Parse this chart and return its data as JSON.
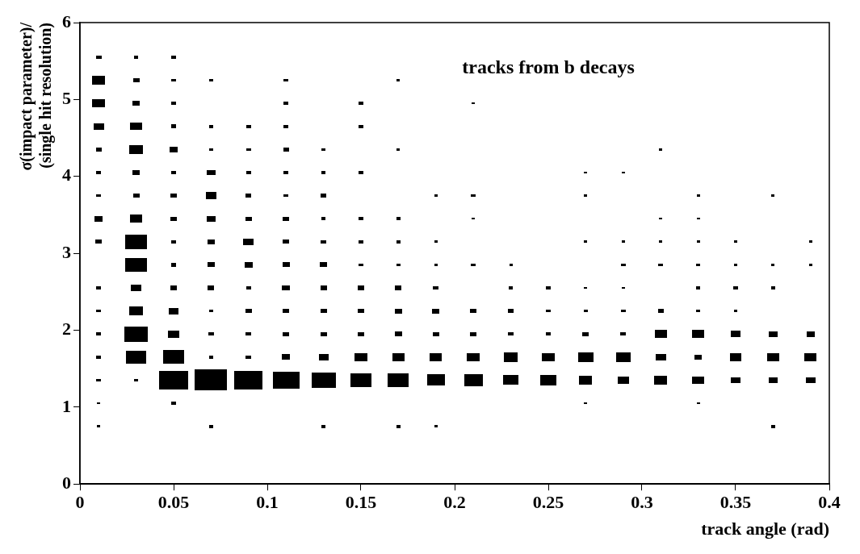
{
  "chart_data": {
    "type": "bubble",
    "marker": "square",
    "color": "#000000",
    "annotations": [
      "tracks from b decays"
    ],
    "xlabel": "track angle (rad)",
    "ylabel": "σ(impact parameter)/\n(single hit resolution)",
    "xlim": [
      0,
      0.4
    ],
    "xticks": [
      0,
      0.05,
      0.1,
      0.15,
      0.2,
      0.25,
      0.3,
      0.35,
      0.4
    ],
    "ylim": [
      0,
      6
    ],
    "yticks": [
      0,
      1,
      2,
      3,
      4,
      5,
      6
    ],
    "x": [
      0.01,
      0.01,
      0.01,
      0.01,
      0.01,
      0.01,
      0.01,
      0.01,
      0.01,
      0.01,
      0.01,
      0.01,
      0.01,
      0.01,
      0.01,
      0.01,
      0.03,
      0.03,
      0.03,
      0.03,
      0.03,
      0.03,
      0.03,
      0.03,
      0.03,
      0.03,
      0.03,
      0.03,
      0.03,
      0.03,
      0.03,
      0.05,
      0.05,
      0.05,
      0.05,
      0.05,
      0.05,
      0.05,
      0.05,
      0.05,
      0.05,
      0.05,
      0.05,
      0.05,
      0.05,
      0.05,
      0.05,
      0.07,
      0.07,
      0.07,
      0.07,
      0.07,
      0.07,
      0.07,
      0.07,
      0.07,
      0.07,
      0.07,
      0.07,
      0.07,
      0.07,
      0.09,
      0.09,
      0.09,
      0.09,
      0.09,
      0.09,
      0.09,
      0.09,
      0.09,
      0.09,
      0.09,
      0.09,
      0.11,
      0.11,
      0.11,
      0.11,
      0.11,
      0.11,
      0.11,
      0.11,
      0.11,
      0.11,
      0.11,
      0.11,
      0.11,
      0.11,
      0.13,
      0.13,
      0.13,
      0.13,
      0.13,
      0.13,
      0.13,
      0.13,
      0.13,
      0.13,
      0.13,
      0.13,
      0.15,
      0.15,
      0.15,
      0.15,
      0.15,
      0.15,
      0.15,
      0.15,
      0.15,
      0.15,
      0.15,
      0.17,
      0.17,
      0.17,
      0.17,
      0.17,
      0.17,
      0.17,
      0.17,
      0.17,
      0.17,
      0.17,
      0.19,
      0.19,
      0.19,
      0.19,
      0.19,
      0.19,
      0.19,
      0.19,
      0.19,
      0.21,
      0.21,
      0.21,
      0.21,
      0.21,
      0.21,
      0.21,
      0.21,
      0.23,
      0.23,
      0.23,
      0.23,
      0.23,
      0.23,
      0.25,
      0.25,
      0.25,
      0.25,
      0.25,
      0.27,
      0.27,
      0.27,
      0.27,
      0.27,
      0.27,
      0.27,
      0.27,
      0.27,
      0.29,
      0.29,
      0.29,
      0.29,
      0.29,
      0.29,
      0.29,
      0.29,
      0.31,
      0.31,
      0.31,
      0.31,
      0.31,
      0.31,
      0.31,
      0.31,
      0.33,
      0.33,
      0.33,
      0.33,
      0.33,
      0.33,
      0.33,
      0.33,
      0.33,
      0.33,
      0.35,
      0.35,
      0.35,
      0.35,
      0.35,
      0.35,
      0.35,
      0.37,
      0.37,
      0.37,
      0.37,
      0.37,
      0.37,
      0.37,
      0.39,
      0.39,
      0.39,
      0.39,
      0.39
    ],
    "values": [
      5.55,
      5.25,
      4.95,
      4.65,
      4.35,
      4.05,
      3.75,
      3.45,
      3.15,
      2.55,
      2.25,
      1.95,
      1.65,
      1.35,
      1.05,
      0.75,
      5.55,
      5.25,
      4.95,
      4.65,
      4.35,
      4.05,
      3.75,
      3.45,
      3.15,
      2.85,
      2.55,
      2.25,
      1.95,
      1.65,
      1.35,
      5.55,
      5.25,
      4.95,
      4.65,
      4.35,
      4.05,
      3.75,
      3.45,
      3.15,
      2.85,
      2.55,
      2.25,
      1.95,
      1.65,
      1.35,
      1.05,
      5.25,
      4.65,
      4.35,
      4.05,
      3.75,
      3.45,
      3.15,
      2.85,
      2.55,
      2.25,
      1.95,
      1.65,
      1.35,
      0.75,
      4.65,
      4.35,
      4.05,
      3.75,
      3.45,
      3.15,
      2.85,
      2.55,
      2.25,
      1.95,
      1.65,
      1.35,
      5.25,
      4.95,
      4.65,
      4.35,
      4.05,
      3.75,
      3.45,
      3.15,
      2.85,
      2.55,
      2.25,
      1.95,
      1.65,
      1.35,
      4.35,
      4.05,
      3.75,
      3.45,
      3.15,
      2.85,
      2.55,
      2.25,
      1.95,
      1.65,
      1.35,
      0.75,
      4.95,
      4.65,
      4.05,
      3.45,
      3.15,
      2.85,
      2.55,
      2.25,
      1.95,
      1.65,
      1.35,
      5.25,
      4.35,
      3.45,
      3.15,
      2.85,
      2.55,
      2.25,
      1.95,
      1.65,
      1.35,
      0.75,
      3.75,
      3.15,
      2.85,
      2.55,
      2.25,
      1.95,
      1.65,
      1.35,
      0.75,
      4.95,
      3.75,
      3.45,
      2.85,
      2.25,
      1.95,
      1.65,
      1.35,
      2.85,
      2.55,
      2.25,
      1.95,
      1.65,
      1.35,
      2.55,
      2.25,
      1.95,
      1.65,
      1.35,
      4.05,
      3.75,
      3.15,
      2.55,
      2.25,
      1.95,
      1.65,
      1.35,
      1.05,
      4.05,
      3.15,
      2.85,
      2.55,
      2.25,
      1.95,
      1.65,
      1.35,
      4.35,
      3.45,
      3.15,
      2.85,
      2.25,
      1.95,
      1.65,
      1.35,
      3.75,
      3.45,
      3.15,
      2.85,
      2.55,
      2.25,
      1.95,
      1.65,
      1.35,
      1.05,
      3.15,
      2.85,
      2.55,
      2.25,
      1.95,
      1.65,
      1.35,
      3.75,
      2.85,
      2.55,
      1.95,
      1.65,
      1.35,
      0.75,
      3.15,
      2.85,
      1.95,
      1.65,
      1.35
    ],
    "sizes": [
      0.03,
      0.16,
      0.17,
      0.1,
      0.03,
      0.02,
      0.02,
      0.07,
      0.04,
      0.02,
      0.02,
      0.02,
      0.02,
      0.02,
      0.01,
      0.01,
      0.02,
      0.04,
      0.06,
      0.13,
      0.17,
      0.06,
      0.04,
      0.13,
      0.47,
      0.44,
      0.1,
      0.17,
      0.53,
      0.37,
      0.02,
      0.02,
      0.02,
      0.03,
      0.03,
      0.07,
      0.02,
      0.04,
      0.04,
      0.03,
      0.03,
      0.04,
      0.1,
      0.11,
      0.44,
      0.8,
      0.02,
      0.02,
      0.02,
      0.02,
      0.07,
      0.1,
      0.07,
      0.06,
      0.05,
      0.04,
      0.02,
      0.03,
      0.02,
      1,
      0.02,
      0.02,
      0.02,
      0.02,
      0.03,
      0.04,
      0.1,
      0.07,
      0.02,
      0.04,
      0.03,
      0.03,
      0.77,
      0.02,
      0.02,
      0.02,
      0.03,
      0.02,
      0.02,
      0.04,
      0.04,
      0.05,
      0.06,
      0.04,
      0.04,
      0.07,
      0.69,
      0.02,
      0.02,
      0.03,
      0.02,
      0.03,
      0.05,
      0.04,
      0.04,
      0.04,
      0.09,
      0.56,
      0.02,
      0.02,
      0.02,
      0.02,
      0.02,
      0.02,
      0.02,
      0.04,
      0.04,
      0.04,
      0.16,
      0.44,
      0.01,
      0.01,
      0.02,
      0.02,
      0.02,
      0.04,
      0.05,
      0.05,
      0.14,
      0.42,
      0.02,
      0.01,
      0.01,
      0.01,
      0.03,
      0.05,
      0.04,
      0.14,
      0.29,
      0.01,
      0.01,
      0.02,
      0.01,
      0.02,
      0.04,
      0.04,
      0.16,
      0.32,
      0.01,
      0.02,
      0.03,
      0.03,
      0.19,
      0.21,
      0.02,
      0.02,
      0.03,
      0.16,
      0.23,
      0.01,
      0.01,
      0.01,
      0.01,
      0.02,
      0.04,
      0.23,
      0.16,
      0.01,
      0.01,
      0.01,
      0.02,
      0.01,
      0.02,
      0.03,
      0.19,
      0.13,
      0.01,
      0.01,
      0.01,
      0.02,
      0.03,
      0.14,
      0.1,
      0.16,
      0.01,
      0.01,
      0.01,
      0.02,
      0.02,
      0.02,
      0.14,
      0.06,
      0.14,
      0.01,
      0.01,
      0.01,
      0.02,
      0.01,
      0.1,
      0.13,
      0.09,
      0.01,
      0.01,
      0.02,
      0.08,
      0.14,
      0.07,
      0.02,
      0.01,
      0.01,
      0.07,
      0.14,
      0.09
    ]
  }
}
